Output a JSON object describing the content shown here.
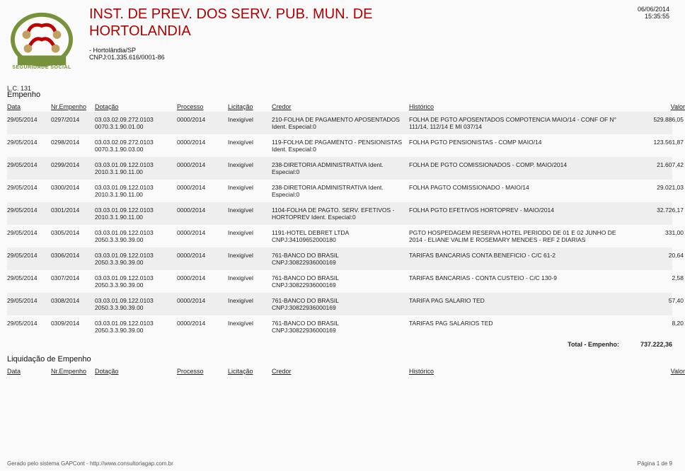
{
  "header": {
    "org_line1": "INST. DE PREV. DOS SERV. PUB. MUN. DE",
    "org_line2": "HORTOLANDIA",
    "logo_caption": "SEGURIDADE SOCIAL",
    "city": "- Hortolândia/SP",
    "cnpj": "CNPJ:01.335.616/0001-86",
    "date": "06/06/2014",
    "time": "15:35:55",
    "lc": "L.C. 131"
  },
  "sections": {
    "empenho_title": "Empenho",
    "liquidacao_title": "Liquidação de Empenho"
  },
  "columns": {
    "data": "Data",
    "nr": "Nr.Empenho",
    "dotacao": "Dotação",
    "processo": "Processo",
    "licitacao": "Licitação",
    "credor": "Credor",
    "historico": "Histórico",
    "valor": "Valor"
  },
  "rows": [
    {
      "data": "29/05/2014",
      "nr": "0297/2014",
      "dotacao": "03.03.02.09.272.0103\n0070.3.1.90.01.00",
      "processo": "0000/2014",
      "licitacao": "Inexigível",
      "credor": "210-FOLHA DE PAGAMENTO APOSENTADOS Ident. Especial:0",
      "historico": "FOLHA DE PGTO APOSENTADOS COMPOTENCIA MAIO/14 - CONF OF N° 111/14, 112/14 E MI 037/14",
      "valor": "529.886,05"
    },
    {
      "data": "29/05/2014",
      "nr": "0298/2014",
      "dotacao": "03.03.02.09.272.0103\n0070.3.1.90.03.00",
      "processo": "0000/2014",
      "licitacao": "Inexigível",
      "credor": "119-FOLHA DE PAGAMENTO - PENSIONISTAS Ident. Especial:0",
      "historico": "FOLHA PGTO PENSIONISTAS - COMP MAIO/14",
      "valor": "123.561,87"
    },
    {
      "data": "29/05/2014",
      "nr": "0299/2014",
      "dotacao": "03.03.01.09.122.0103\n2010.3.1.90.11.00",
      "processo": "0000/2014",
      "licitacao": "Inexigível",
      "credor": "238-DIRETORIA ADMINISTRATIVA Ident. Especial:0",
      "historico": "FOLHA DE PGTO COMISSIONADOS - COMP. MAIO/2014",
      "valor": "21.607,42"
    },
    {
      "data": "29/05/2014",
      "nr": "0300/2014",
      "dotacao": "03.03.01.09.122.0103\n2010.3.1.90.11.00",
      "processo": "0000/2014",
      "licitacao": "Inexigível",
      "credor": "238-DIRETORIA ADMINISTRATIVA Ident. Especial:0",
      "historico": "FOLHA PAGTO COMISSIONADO - MAIO/14",
      "valor": "29.021,03"
    },
    {
      "data": "29/05/2014",
      "nr": "0301/2014",
      "dotacao": "03.03.01.09.122.0103\n2010.3.1.90.11.00",
      "processo": "0000/2014",
      "licitacao": "Inexigível",
      "credor": "1104-FOLHA DE PAGTO. SERV. EFETIVOS - HORTOPREV Ident. Especial:0",
      "historico": "FOLHA PGTO EFETIVOS HORTOPREV - MAIO/2014",
      "valor": "32.726,17"
    },
    {
      "data": "29/05/2014",
      "nr": "0305/2014",
      "dotacao": "03.03.01.09.122.0103\n2050.3.3.90.39.00",
      "processo": "0000/2014",
      "licitacao": "Inexigível",
      "credor": "1191-HOTEL  DEBRET LTDA\nCNPJ:34109652000180",
      "historico": "PGTO HOSPEDAGEM RESERVA HOTEL PERIODO DE 01 E 02 JUNHO DE 2014 - ELIANE VALIM E ROSEMARY MENDES - REF 2 DIARIAS",
      "valor": "331,00"
    },
    {
      "data": "29/05/2014",
      "nr": "0306/2014",
      "dotacao": "03.03.01.09.122.0103\n2050.3.3.90.39.00",
      "processo": "0000/2014",
      "licitacao": "Inexigível",
      "credor": "761-BANCO DO BRASIL\nCNPJ:30822936000169",
      "historico": "TARIFAS BANCARIAS CONTA BENEFICIO - C/C 61-2",
      "valor": "20,64"
    },
    {
      "data": "29/05/2014",
      "nr": "0307/2014",
      "dotacao": "03.03.01.09.122.0103\n2050.3.3.90.39.00",
      "processo": "0000/2014",
      "licitacao": "Inexigível",
      "credor": "761-BANCO DO BRASIL\nCNPJ:30822936000169",
      "historico": "TARIFAS BANCARIAS - CONTA CUSTEIO - C/C 130-9",
      "valor": "2,58"
    },
    {
      "data": "29/05/2014",
      "nr": "0308/2014",
      "dotacao": "03.03.01.09.122.0103\n2050.3.3.90.39.00",
      "processo": "0000/2014",
      "licitacao": "Inexigível",
      "credor": "761-BANCO DO BRASIL\nCNPJ:30822936000169",
      "historico": "TARIFA PAG SALARIO TED",
      "valor": "57,40"
    },
    {
      "data": "29/05/2014",
      "nr": "0309/2014",
      "dotacao": "03.03.01.09.122.0103\n2050.3.3.90.39.00",
      "processo": "0000/2014",
      "licitacao": "Inexigível",
      "credor": "761-BANCO DO BRASIL\nCNPJ:30822936000169",
      "historico": "TARIFAS PAG SALARIOS TED",
      "valor": "8,20"
    }
  ],
  "total": {
    "label": "Total - Empenho:",
    "value": "737.222,36"
  },
  "footer": {
    "left": "Gerado pelo sistema GAPCont - http://www.consultoriagap.com.br",
    "right": "Página 1 de 9"
  },
  "style": {
    "org_color": "#b00000",
    "logo_green": "#76923a",
    "logo_red": "#c00000",
    "alt_bg": "#eeeeee",
    "page_bg": "#fafafa"
  }
}
